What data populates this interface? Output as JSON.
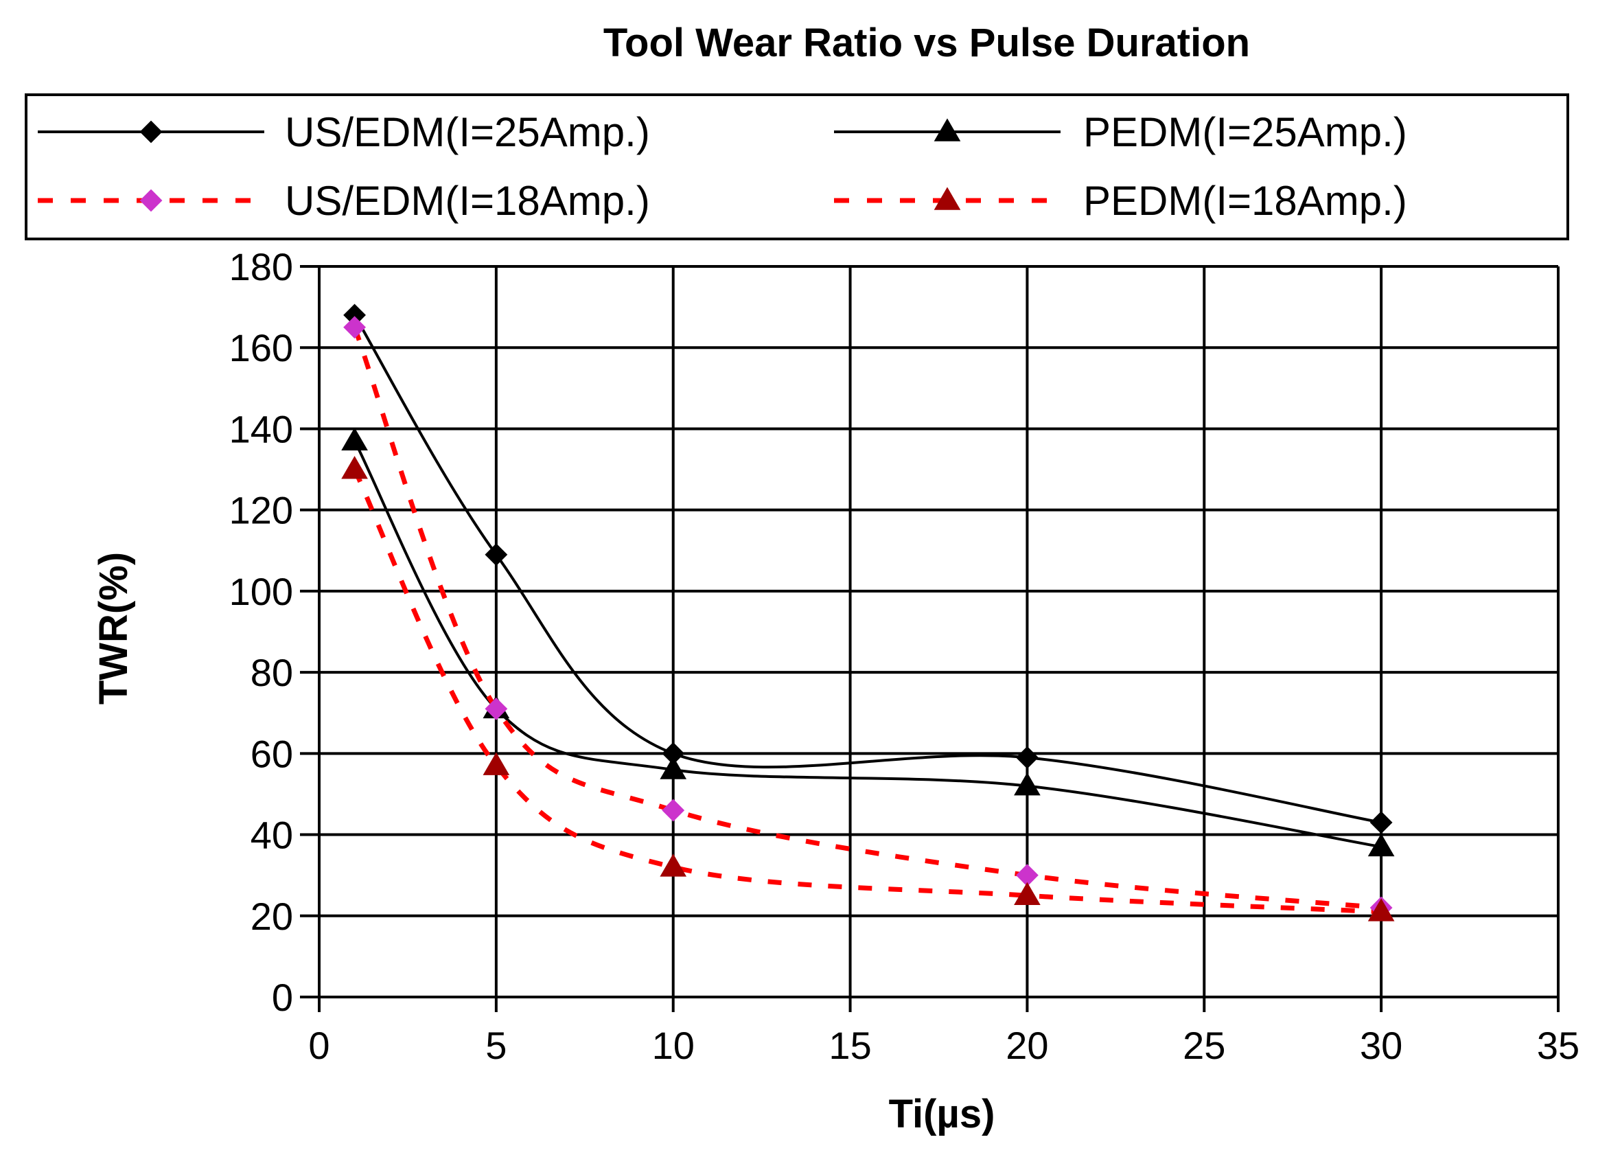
{
  "chart_data": {
    "type": "line",
    "title": "Tool Wear Ratio vs Pulse Duration",
    "xlabel": "Ti(µs)",
    "ylabel": "TWR(%)",
    "xlim": [
      0,
      35
    ],
    "ylim": [
      0,
      180
    ],
    "xticks": [
      0,
      5,
      10,
      15,
      20,
      25,
      30,
      35
    ],
    "yticks": [
      0,
      20,
      40,
      60,
      80,
      100,
      120,
      140,
      160,
      180
    ],
    "grid": true,
    "legend_position": "top",
    "x": [
      1,
      5,
      10,
      20,
      30
    ],
    "series": [
      {
        "name": "US/EDM(I=25Amp.)",
        "values": [
          168,
          109,
          60,
          59,
          43
        ],
        "color": "#000000",
        "dash": "solid",
        "marker": "diamond",
        "marker_color": "#000000"
      },
      {
        "name": "PEDM(I=25Amp.)",
        "values": [
          137,
          71,
          56,
          52,
          37
        ],
        "color": "#000000",
        "dash": "solid",
        "marker": "triangle",
        "marker_color": "#000000"
      },
      {
        "name": "US/EDM(I=18Amp.)",
        "values": [
          165,
          71,
          46,
          30,
          22
        ],
        "color": "#ff0000",
        "dash": "dashed",
        "marker": "diamond",
        "marker_color": "#cc33cc"
      },
      {
        "name": "PEDM(I=18Amp.)",
        "values": [
          130,
          57,
          32,
          25,
          21
        ],
        "color": "#ff0000",
        "dash": "dashed",
        "marker": "triangle",
        "marker_color": "#a00000"
      }
    ]
  }
}
